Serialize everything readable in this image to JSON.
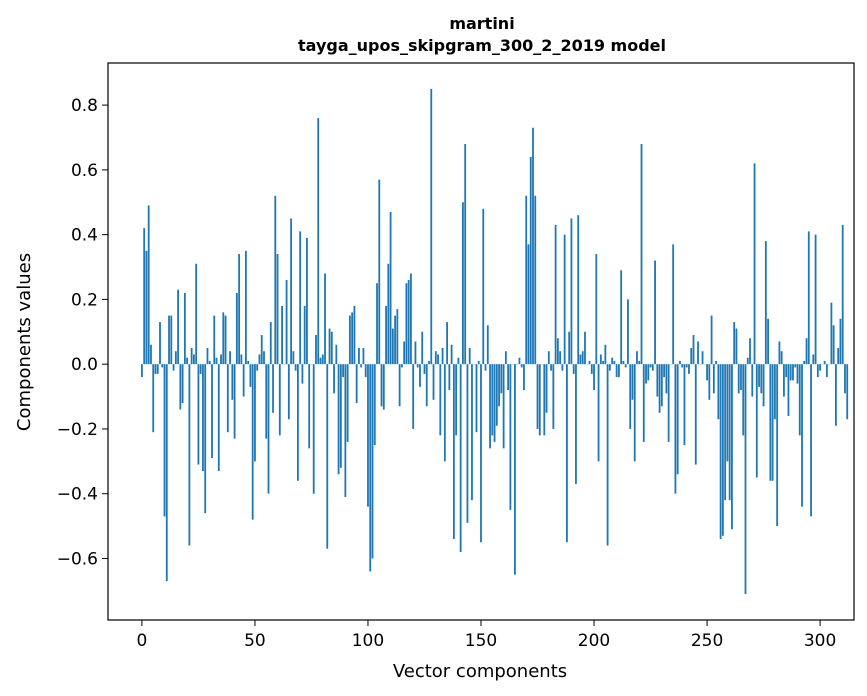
{
  "chart_data": {
    "type": "bar",
    "title_line1": "martini",
    "title_line2": "tayga_upos_skipgram_300_2_2019 model",
    "xlabel": "Vector components",
    "ylabel": "Components values",
    "xlim": [
      -15,
      315
    ],
    "ylim": [
      -0.79,
      0.93
    ],
    "xticks": [
      0,
      50,
      100,
      150,
      200,
      250,
      300
    ],
    "xtick_labels": [
      "0",
      "50",
      "100",
      "150",
      "200",
      "250",
      "300"
    ],
    "yticks": [
      -0.6,
      -0.4,
      -0.2,
      0.0,
      0.2,
      0.4,
      0.6,
      0.8
    ],
    "ytick_labels": [
      "−0.6",
      "−0.4",
      "−0.2",
      "0.0",
      "0.2",
      "0.4",
      "0.6",
      "0.8"
    ],
    "bar_color": "#1f77b4",
    "grid": false,
    "values": [
      -0.04,
      0.42,
      0.35,
      0.49,
      0.06,
      -0.21,
      -0.03,
      -0.03,
      0.13,
      -0.01,
      -0.47,
      -0.67,
      0.15,
      0.15,
      -0.02,
      0.04,
      0.23,
      -0.14,
      -0.12,
      0.22,
      0.02,
      -0.56,
      0.05,
      0.03,
      0.31,
      -0.31,
      -0.03,
      -0.33,
      -0.46,
      0.05,
      0.01,
      -0.29,
      0.15,
      0.02,
      -0.33,
      0.03,
      0.16,
      0.15,
      -0.21,
      0.04,
      -0.11,
      -0.23,
      0.22,
      0.34,
      0.03,
      -0.1,
      0.35,
      0.01,
      -0.07,
      -0.48,
      -0.3,
      -0.02,
      0.03,
      0.09,
      0.04,
      -0.23,
      -0.4,
      0.13,
      -0.15,
      0.52,
      0.34,
      -0.22,
      0.18,
      0.0,
      0.26,
      -0.17,
      0.45,
      0.04,
      -0.02,
      -0.36,
      0.41,
      -0.06,
      0.18,
      0.39,
      -0.26,
      0.0,
      -0.4,
      0.09,
      0.76,
      0.02,
      0.03,
      0.28,
      -0.57,
      0.11,
      0.1,
      -0.09,
      0.06,
      -0.34,
      -0.32,
      -0.04,
      -0.41,
      -0.24,
      0.15,
      0.16,
      0.18,
      -0.12,
      0.05,
      -0.01,
      0.05,
      -0.04,
      -0.44,
      -0.64,
      -0.6,
      -0.25,
      0.25,
      0.57,
      -0.13,
      -0.14,
      0.18,
      0.31,
      0.47,
      0.11,
      0.15,
      0.17,
      -0.13,
      -0.01,
      0.07,
      0.25,
      0.26,
      0.28,
      -0.2,
      0.07,
      -0.01,
      -0.07,
      0.1,
      -0.03,
      -0.13,
      0.01,
      0.85,
      -0.11,
      0.04,
      0.03,
      -0.22,
      0.05,
      -0.3,
      0.13,
      -0.08,
      0.06,
      -0.54,
      -0.22,
      0.02,
      -0.58,
      0.5,
      0.68,
      -0.49,
      0.05,
      -0.42,
      0.0,
      -0.21,
      0.01,
      -0.55,
      0.48,
      -0.02,
      0.12,
      -0.26,
      -0.22,
      -0.24,
      -0.19,
      -0.13,
      -0.09,
      -0.26,
      0.04,
      -0.08,
      -0.45,
      0.0,
      -0.65,
      0.0,
      0.02,
      -0.01,
      -0.08,
      0.52,
      0.37,
      0.64,
      0.73,
      0.52,
      -0.2,
      -0.22,
      0.0,
      -0.22,
      -0.15,
      0.04,
      -0.02,
      -0.2,
      0.43,
      0.08,
      0.04,
      -0.02,
      0.4,
      -0.55,
      0.1,
      0.45,
      -0.03,
      -0.37,
      0.46,
      0.03,
      0.04,
      0.1,
      0.0,
      0.01,
      -0.03,
      -0.08,
      0.34,
      -0.3,
      0.03,
      0.01,
      0.06,
      -0.56,
      -0.02,
      0.02,
      0.01,
      -0.04,
      -0.04,
      0.29,
      0.01,
      -0.01,
      0.2,
      -0.2,
      -0.11,
      -0.3,
      0.04,
      0.01,
      0.68,
      -0.24,
      -0.06,
      -0.05,
      -0.01,
      -0.02,
      0.32,
      -0.1,
      -0.15,
      -0.13,
      -0.04,
      -0.09,
      -0.24,
      0.0,
      0.37,
      -0.4,
      -0.34,
      0.01,
      -0.01,
      -0.25,
      -0.01,
      -0.03,
      0.05,
      0.09,
      -0.31,
      0.07,
      0.0,
      0.04,
      0.0,
      -0.05,
      -0.11,
      0.15,
      -0.09,
      0.01,
      -0.17,
      -0.54,
      -0.53,
      -0.42,
      -0.3,
      -0.42,
      -0.51,
      0.13,
      0.11,
      -0.09,
      -0.08,
      -0.22,
      -0.71,
      0.02,
      0.08,
      -0.1,
      0.62,
      -0.35,
      -0.07,
      -0.09,
      -0.13,
      0.38,
      0.14,
      -0.36,
      -0.36,
      -0.17,
      -0.5,
      0.07,
      0.04,
      -0.1,
      -0.04,
      -0.16,
      -0.05,
      -0.05,
      -0.01,
      -0.06,
      -0.22,
      -0.44,
      0.01,
      0.08,
      0.41,
      -0.47,
      0.03,
      0.4,
      -0.04,
      -0.02,
      0.0,
      0.01,
      -0.04,
      0.0,
      0.19,
      0.12,
      -0.19,
      0.05,
      0.14,
      0.43,
      -0.09,
      -0.17
    ]
  }
}
